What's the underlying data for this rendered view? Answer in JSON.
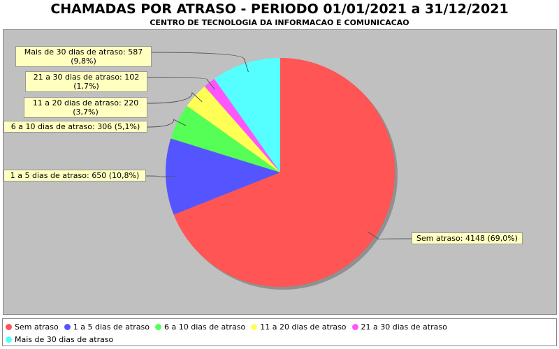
{
  "chart_data": {
    "type": "pie",
    "title": "CHAMADAS POR ATRASO - PERIODO 01/01/2021 a 31/12/2021",
    "subtitle": "CENTRO DE TECNOLOGIA DA INFORMACAO E COMUNICACAO",
    "categories": [
      "Sem atraso",
      "1 a 5 dias de atraso",
      "6 a 10 dias de atraso",
      "11 a 20 dias de atraso",
      "21 a 30 dias de atraso",
      "Mais de 30 dias de atraso"
    ],
    "values": [
      4148,
      650,
      306,
      220,
      102,
      587
    ],
    "value_labels": [
      "Sem atraso: 4148 (69,0%)",
      "1 a 5 dias de atraso: 650 (10,8%)",
      "6 a 10 dias de atraso: 306 (5,1%)",
      "11 a 20 dias de atraso: 220 (3,7%)",
      "21 a 30 dias de atraso: 102 (1,7%)",
      "Mais de 30 dias de atraso: 587 (9,8%)"
    ],
    "colors": [
      "#ff5555",
      "#5555ff",
      "#55ff55",
      "#ffff55",
      "#ff55ff",
      "#55ffff"
    ],
    "legend": "bottom"
  }
}
